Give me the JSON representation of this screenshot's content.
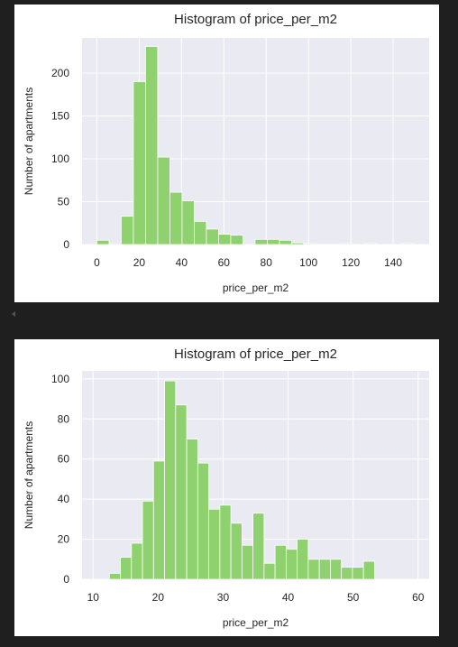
{
  "colors": {
    "plot_bg": "#eaeaf2",
    "grid": "#ffffff",
    "bar": "#8fd16f",
    "bar_edge": "#ffffff",
    "text": "#262626"
  },
  "chart_data": [
    {
      "type": "bar",
      "title": "Histogram of price_per_m2",
      "xlabel": "price_per_m2",
      "ylabel": "Number of apartments",
      "xlim": [
        -7,
        157
      ],
      "ylim": [
        0,
        241
      ],
      "xticks": [
        0,
        20,
        40,
        60,
        80,
        100,
        120,
        140
      ],
      "yticks": [
        0,
        50,
        100,
        150,
        200
      ],
      "bin_edges": [
        0,
        5.75,
        11.5,
        17.25,
        23,
        28.75,
        34.5,
        40.25,
        46,
        51.75,
        57.5,
        63.25,
        69,
        74.75,
        80.5,
        86.25,
        92,
        97.75,
        103.5,
        109.25,
        115,
        120.75,
        126.5,
        132.25,
        138,
        143.75,
        149.5
      ],
      "values": [
        5,
        0,
        33,
        190,
        231,
        102,
        61,
        51,
        27,
        18,
        12,
        11,
        0,
        6,
        6,
        5,
        2,
        1,
        0,
        0,
        1,
        0,
        1,
        0,
        0,
        1
      ]
    },
    {
      "type": "bar",
      "title": "Histogram of price_per_m2",
      "xlabel": "price_per_m2",
      "ylabel": "Number of apartments",
      "xlim": [
        8.3,
        61.7
      ],
      "ylim": [
        0,
        104
      ],
      "xticks": [
        10,
        20,
        30,
        40,
        50,
        60
      ],
      "yticks": [
        0,
        20,
        40,
        60,
        80,
        100
      ],
      "bin_edges": [
        10.8,
        12.5,
        14.2,
        15.9,
        17.6,
        19.3,
        21.0,
        22.7,
        24.4,
        26.1,
        27.8,
        29.5,
        31.2,
        32.9,
        34.6,
        36.3,
        38.0,
        39.7,
        41.4,
        43.1,
        44.8,
        46.5,
        48.2,
        49.9,
        51.6,
        53.3,
        55.0,
        56.7,
        58.4,
        60.1
      ],
      "values": [
        0,
        3,
        11,
        18,
        39,
        59,
        99,
        87,
        70,
        58,
        35,
        37,
        28,
        17,
        33,
        8,
        17,
        15,
        20,
        10,
        10,
        10,
        6,
        6,
        9,
        0,
        0,
        0,
        0
      ]
    }
  ]
}
